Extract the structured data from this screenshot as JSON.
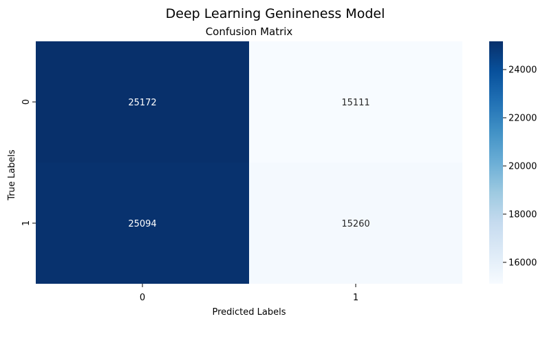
{
  "figure": {
    "suptitle": "Deep Learning Genineness Model"
  },
  "chart_data": {
    "type": "heatmap",
    "title": "Confusion Matrix",
    "xlabel": "Predicted Labels",
    "ylabel": "True Labels",
    "x_categories": [
      "0",
      "1"
    ],
    "y_categories": [
      "0",
      "1"
    ],
    "values": [
      [
        25172,
        15111
      ],
      [
        25094,
        15260
      ]
    ],
    "value_labels": [
      [
        "25172",
        "15111"
      ],
      [
        "25094",
        "15260"
      ]
    ],
    "colormap": "Blues",
    "vmin": 15111,
    "vmax": 25172,
    "colorbar_ticks": [
      16000,
      18000,
      20000,
      22000,
      24000
    ],
    "colorbar_tick_labels": [
      "16000",
      "18000",
      "20000",
      "22000",
      "24000"
    ],
    "colors": {
      "low": "#f7fbff",
      "high": "#08306b"
    }
  }
}
